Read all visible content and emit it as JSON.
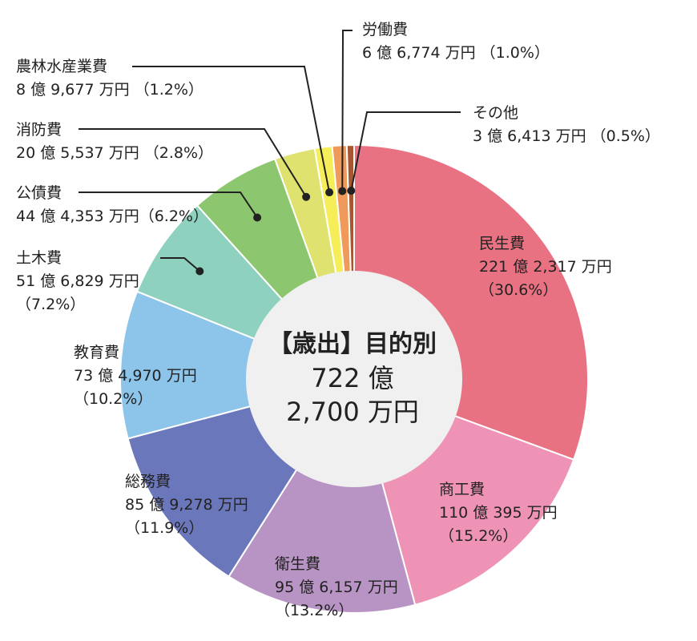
{
  "chart_data": {
    "type": "pie",
    "title": "【歳出】目的別",
    "total_line1": "722 億",
    "total_line2": "2,700 万円",
    "categories": [
      "民生費",
      "商工費",
      "衛生費",
      "総務費",
      "教育費",
      "土木費",
      "公債費",
      "消防費",
      "農林水産業費",
      "労働費",
      "その他"
    ],
    "values": [
      30.6,
      15.2,
      13.2,
      11.9,
      10.2,
      7.2,
      6.2,
      2.8,
      1.2,
      1.0,
      0.5
    ],
    "amount_labels": [
      "221 億 2,317 万円",
      "110 億 395 万円",
      "95 億 6,157 万円",
      "85 億 9,278 万円",
      "73 億 4,970 万円",
      "51 億 6,829 万円",
      "44 億 4,353 万円",
      "20 億 5,537 万円",
      "8 億 9,677 万円",
      "6 億 6,774 万円",
      "3 億 6,413 万円"
    ],
    "percent_labels": [
      "（30.6%）",
      "（15.2%）",
      "（13.2%）",
      "（11.9%）",
      "（10.2%）",
      "（7.2%）",
      "（6.2%）",
      "（2.8%）",
      "（1.2%）",
      "（1.0%）",
      "（0.5%）"
    ],
    "colors": [
      "#e87182",
      "#ef93b6",
      "#b894c4",
      "#6b77bb",
      "#8cc4ea",
      "#8fd1bf",
      "#8cc66e",
      "#dfe26f",
      "#f5ee58",
      "#ef9a5b",
      "#a8562f"
    ]
  }
}
